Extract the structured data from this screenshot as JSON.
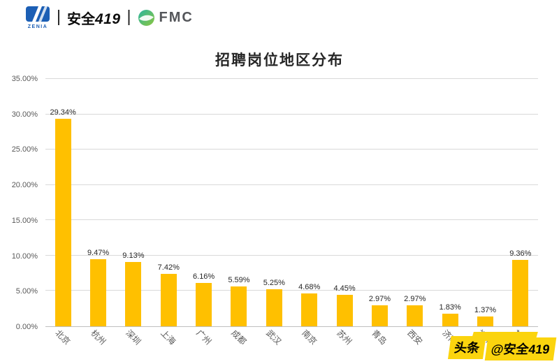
{
  "header": {
    "logo_text": "ZENIA",
    "divider": "|",
    "brand_cn": "安全",
    "brand_num": "419",
    "fmc_label": "FMC"
  },
  "chart_data": {
    "type": "bar",
    "title": "招聘岗位地区分布",
    "categories": [
      "北京",
      "杭州",
      "深圳",
      "上海",
      "广州",
      "成都",
      "武汉",
      "南京",
      "苏州",
      "青岛",
      "西安",
      "济南",
      "福州",
      "其他"
    ],
    "values": [
      29.34,
      9.47,
      9.13,
      7.42,
      6.16,
      5.59,
      5.25,
      4.68,
      4.45,
      2.97,
      2.97,
      1.83,
      1.37,
      9.36
    ],
    "value_labels": [
      "29.34%",
      "9.47%",
      "9.13%",
      "7.42%",
      "6.16%",
      "5.59%",
      "5.25%",
      "4.68%",
      "4.45%",
      "2.97%",
      "2.97%",
      "1.83%",
      "1.37%",
      "9.36%"
    ],
    "xlabel": "",
    "ylabel": "",
    "ylim": [
      0,
      35
    ],
    "yticks": [
      0,
      5,
      10,
      15,
      20,
      25,
      30,
      35
    ],
    "ytick_labels": [
      "0.00%",
      "5.00%",
      "10.00%",
      "15.00%",
      "20.00%",
      "25.00%",
      "30.00%",
      "35.00%"
    ],
    "bar_color": "#FFC000",
    "grid_color": "#D9D9D9",
    "axis_color": "#BFBFBF",
    "grid": "on",
    "legend": "none"
  },
  "watermark": {
    "prefix": "头条",
    "handle": "@安全419",
    "bg_color": "#FBD40E"
  }
}
